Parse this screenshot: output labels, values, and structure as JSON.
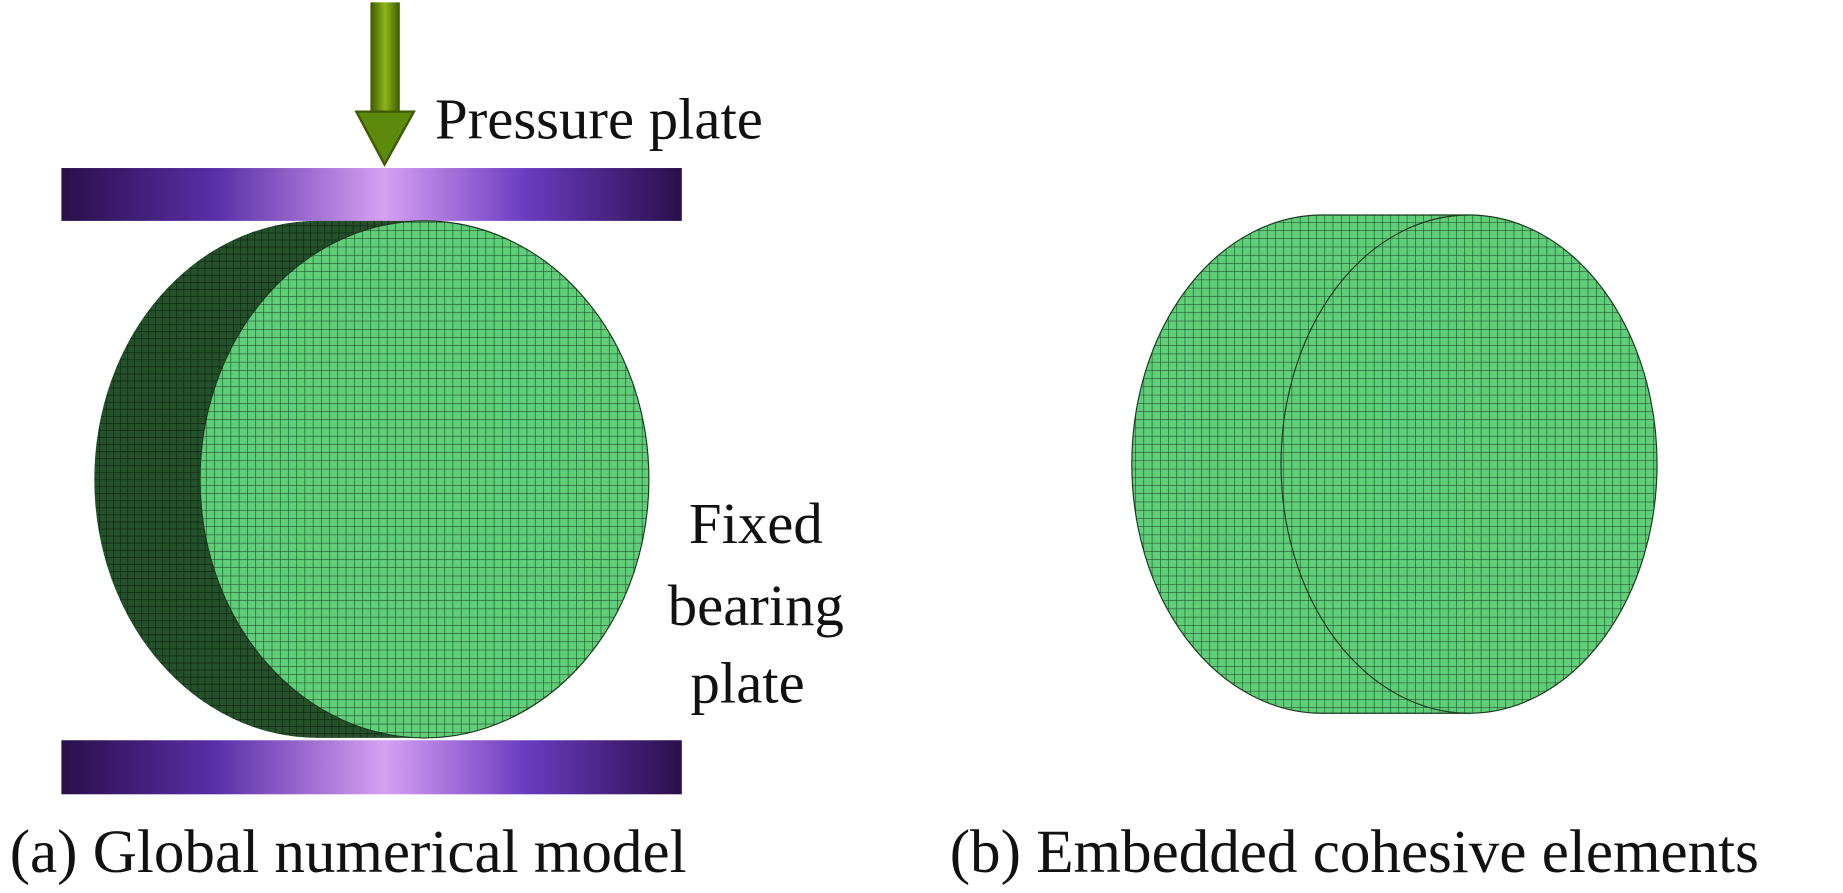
{
  "panel_a": {
    "arrow_label": "Pressure plate",
    "side_label_lines": [
      "Fixed",
      "bearing",
      "plate"
    ],
    "caption": "(a) Global numerical model"
  },
  "panel_b": {
    "caption": "(b) Embedded cohesive elements"
  }
}
